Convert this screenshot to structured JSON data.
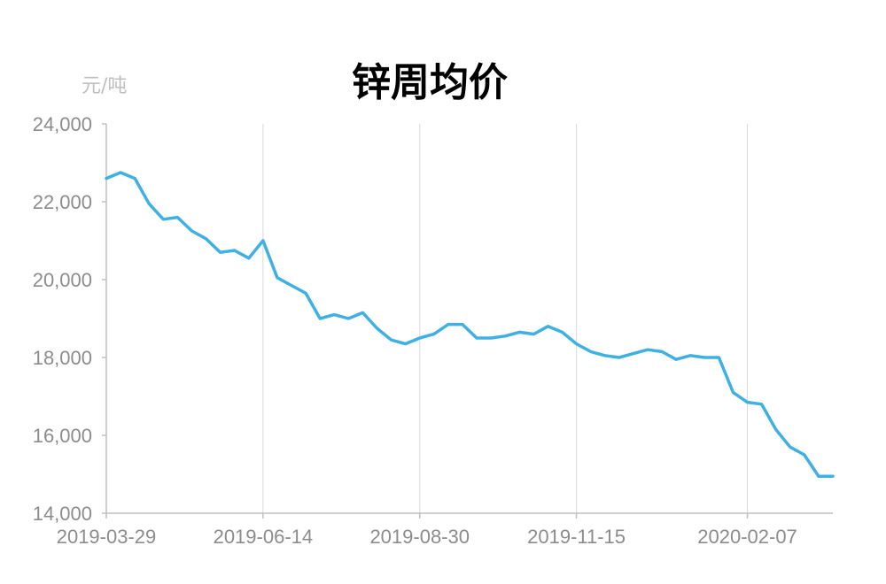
{
  "chart_data": {
    "type": "line",
    "title": "锌周均价",
    "unit_label": "元/吨",
    "xlabel": "",
    "ylabel": "",
    "ylim": [
      14000,
      24000
    ],
    "y_ticks": [
      "14,000",
      "16,000",
      "18,000",
      "20,000",
      "22,000",
      "24,000"
    ],
    "x_ticks": [
      "2019-03-29",
      "2019-06-14",
      "2019-08-30",
      "2019-11-15",
      "2020-02-07"
    ],
    "grid": "vertical",
    "legend": "none",
    "line_color": "#3fb0e3",
    "series": [
      {
        "x": [
          "2019-03-29",
          "2019-04-05",
          "2019-04-12",
          "2019-04-19",
          "2019-04-26",
          "2019-05-03",
          "2019-05-10",
          "2019-05-17",
          "2019-05-24",
          "2019-05-31",
          "2019-06-07",
          "2019-06-14",
          "2019-06-21",
          "2019-06-28",
          "2019-07-05",
          "2019-07-12",
          "2019-07-19",
          "2019-07-26",
          "2019-08-02",
          "2019-08-09",
          "2019-08-16",
          "2019-08-23",
          "2019-08-30",
          "2019-09-06",
          "2019-09-13",
          "2019-09-20",
          "2019-09-27",
          "2019-10-04",
          "2019-10-11",
          "2019-10-18",
          "2019-10-25",
          "2019-11-01",
          "2019-11-08",
          "2019-11-15",
          "2019-11-22",
          "2019-11-29",
          "2019-12-06",
          "2019-12-13",
          "2019-12-20",
          "2019-12-27",
          "2020-01-03",
          "2020-01-10",
          "2020-01-17",
          "2020-01-24",
          "2020-01-31",
          "2020-02-07",
          "2020-02-14",
          "2020-02-21",
          "2020-02-28",
          "2020-03-06",
          "2020-03-13",
          "2020-03-20"
        ],
        "values": [
          22600,
          22750,
          22600,
          21950,
          21550,
          21600,
          21250,
          21050,
          20700,
          20750,
          20550,
          21000,
          20050,
          19850,
          19650,
          19000,
          19100,
          19000,
          19150,
          18750,
          18450,
          18350,
          18500,
          18600,
          18850,
          18850,
          18500,
          18500,
          18550,
          18650,
          18600,
          18800,
          18650,
          18350,
          18150,
          18050,
          18000,
          18100,
          18200,
          18150,
          17950,
          18050,
          18000,
          18000,
          17100,
          16850,
          16800,
          16150,
          15700,
          15500,
          14950,
          14950
        ]
      }
    ]
  }
}
